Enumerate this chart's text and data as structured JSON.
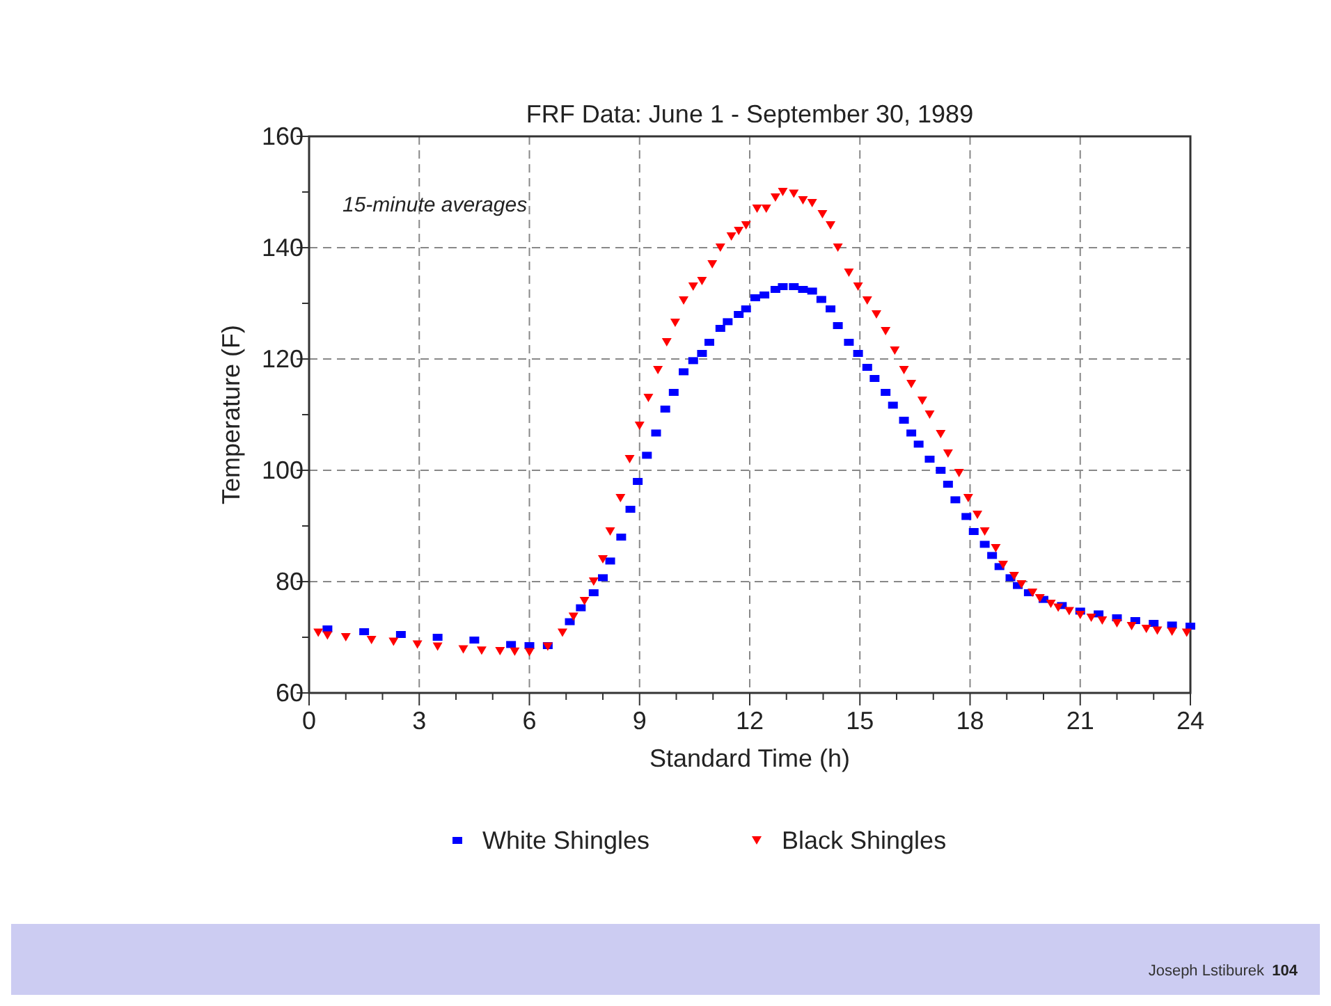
{
  "chart_data": {
    "type": "scatter",
    "title": "FRF Data: June 1 - September 30, 1989",
    "xlabel": "Standard Time (h)",
    "ylabel": "Temperature (F)",
    "annotations": [
      "15-minute averages",
      "Joseph Lstiburek",
      "104"
    ],
    "xlim": [
      0,
      24
    ],
    "ylim": [
      60,
      160
    ],
    "xticks": [
      0,
      {
        "value": 1,
        "label": null
      },
      {
        "value": 2,
        "label": null
      },
      3,
      {
        "value": 4,
        "label": null
      },
      {
        "value": 5,
        "label": null
      },
      6,
      {
        "value": 7,
        "label": null
      },
      {
        "value": 8,
        "label": null
      },
      9,
      {
        "value": 10,
        "label": null
      },
      {
        "value": 11,
        "label": null
      },
      12,
      {
        "value": 13,
        "label": null
      },
      {
        "value": 14,
        "label": null
      },
      15,
      {
        "value": 16,
        "label": null
      },
      {
        "value": 17,
        "label": null
      },
      18,
      {
        "value": 19,
        "label": null
      },
      {
        "value": 20,
        "label": null
      },
      21,
      {
        "value": 22,
        "label": null
      },
      {
        "value": 23,
        "label": null
      },
      24
    ],
    "yticks": [
      60,
      {
        "value": 70,
        "label": null
      },
      80,
      {
        "value": 90,
        "label": null
      },
      100,
      {
        "value": 110,
        "label": null
      },
      120,
      {
        "value": 130,
        "label": null
      },
      140,
      {
        "value": 150,
        "label": null
      },
      160
    ],
    "grid": true,
    "legend": "bottom",
    "series": [
      {
        "name": "White Shingles",
        "color": "#0000ff",
        "marker": "square",
        "x": [
          0.5,
          1.5,
          2.5,
          3.5,
          4.5,
          5.5,
          6,
          6.5,
          7.1,
          7.4,
          7.75,
          8,
          8.2,
          8.5,
          8.75,
          8.95,
          9.2,
          9.45,
          9.7,
          9.93,
          10.2,
          10.46,
          10.7,
          10.9,
          11.2,
          11.4,
          11.7,
          11.9,
          12.15,
          12.4,
          12.7,
          12.9,
          13.2,
          13.45,
          13.7,
          13.95,
          14.2,
          14.4,
          14.7,
          14.95,
          15.2,
          15.4,
          15.7,
          15.9,
          16.2,
          16.4,
          16.6,
          16.9,
          17.2,
          17.4,
          17.6,
          17.9,
          18.1,
          18.4,
          18.6,
          18.8,
          19.1,
          19.3,
          19.6,
          20,
          20.5,
          21,
          21.5,
          22,
          22.5,
          23,
          23.5,
          24
        ],
        "values": [
          71.5,
          71,
          70.5,
          70,
          69.5,
          68.7,
          68.5,
          68.5,
          72.8,
          75.3,
          78,
          80.7,
          83.7,
          88,
          93,
          98,
          102.7,
          106.7,
          111,
          114,
          117.7,
          119.7,
          121,
          123,
          125.5,
          126.7,
          128,
          129,
          131,
          131.5,
          132.5,
          133,
          133,
          132.5,
          132.2,
          130.7,
          129,
          126,
          123,
          121,
          118.5,
          116.5,
          114,
          111.7,
          109,
          106.7,
          104.7,
          102,
          100,
          97.5,
          94.7,
          91.7,
          89,
          86.7,
          84.7,
          82.7,
          80.7,
          79.3,
          78,
          76.8,
          75.7,
          74.7,
          74.2,
          73.5,
          73,
          72.5,
          72.2,
          72
        ]
      },
      {
        "name": "Black Shingles",
        "color": "#ff0000",
        "marker": "triangle",
        "x": [
          0.25,
          0.5,
          1,
          1.7,
          2.3,
          2.95,
          3.5,
          4.2,
          4.7,
          5.2,
          5.6,
          6,
          6.5,
          6.9,
          7.2,
          7.5,
          7.75,
          8,
          8.2,
          8.48,
          8.73,
          9,
          9.24,
          9.5,
          9.74,
          9.97,
          10.2,
          10.46,
          10.7,
          10.98,
          11.2,
          11.5,
          11.7,
          11.9,
          12.2,
          12.45,
          12.7,
          12.9,
          13.2,
          13.45,
          13.7,
          13.98,
          14.2,
          14.4,
          14.7,
          14.95,
          15.2,
          15.45,
          15.7,
          15.95,
          16.2,
          16.4,
          16.7,
          16.9,
          17.2,
          17.4,
          17.7,
          17.95,
          18.2,
          18.4,
          18.7,
          18.9,
          19.2,
          19.4,
          19.7,
          19.9,
          20.2,
          20.4,
          20.7,
          21,
          21.3,
          21.6,
          22,
          22.4,
          22.8,
          23.1,
          23.5,
          23.9
        ],
        "values": [
          70.8,
          70.3,
          70,
          69.5,
          69.2,
          68.7,
          68.3,
          67.8,
          67.6,
          67.5,
          67.4,
          67.3,
          68.3,
          70.8,
          73.7,
          76.5,
          80,
          84,
          89,
          95,
          102,
          108,
          113,
          118,
          123,
          126.5,
          130.5,
          133,
          134,
          137,
          140,
          142,
          143,
          144,
          147,
          147,
          149,
          150,
          149.7,
          148.5,
          148,
          146,
          144,
          140,
          135.5,
          133,
          130.5,
          128,
          125,
          121.5,
          118,
          115.5,
          112.5,
          110,
          106.5,
          103,
          99.5,
          95,
          92,
          89,
          86,
          83,
          81,
          79.5,
          78,
          77,
          76,
          75.3,
          74.7,
          74,
          73.5,
          73,
          72.5,
          72,
          71.5,
          71.2,
          71,
          70.8
        ]
      }
    ]
  }
}
